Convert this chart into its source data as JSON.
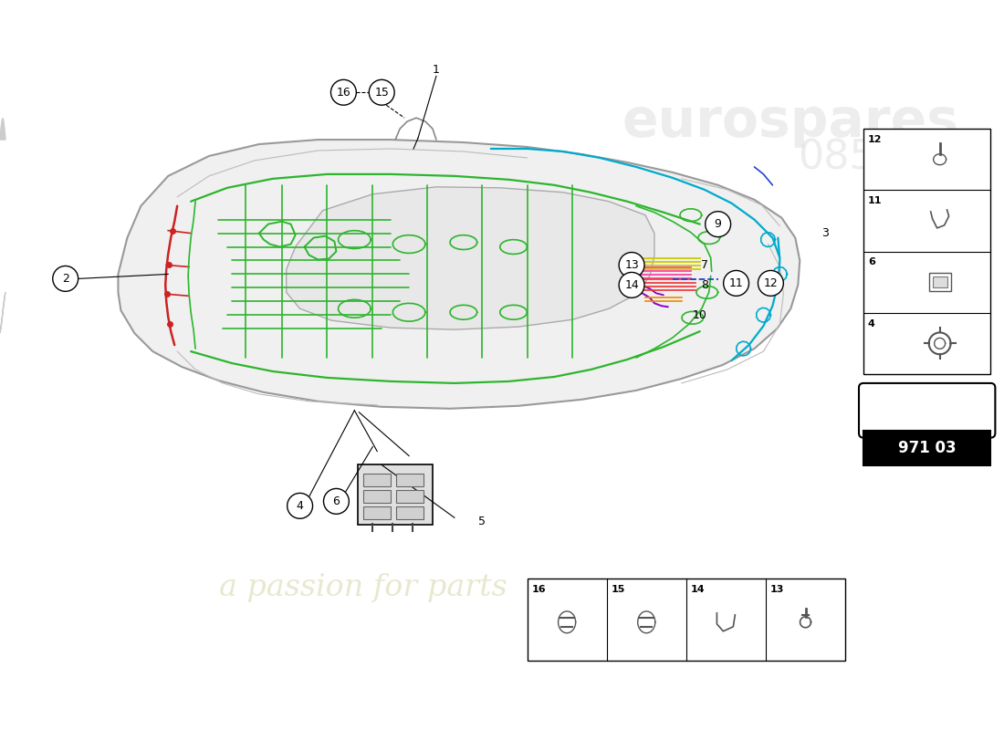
{
  "bg_color": "#ffffff",
  "wire_green": "#2db52d",
  "wire_red": "#cc2222",
  "wire_cyan": "#00aacc",
  "wire_yellow": "#cccc00",
  "wire_purple": "#8800cc",
  "wire_blue": "#2244cc",
  "wire_orange": "#ee8800",
  "wire_pink": "#ff44aa",
  "page_code": "971 03",
  "watermark_text": "a passion for parts",
  "car_fill": "#f0f0f0",
  "car_edge": "#999999",
  "cabin_fill": "#e8e8e8",
  "cabin_edge": "#aaaaaa"
}
